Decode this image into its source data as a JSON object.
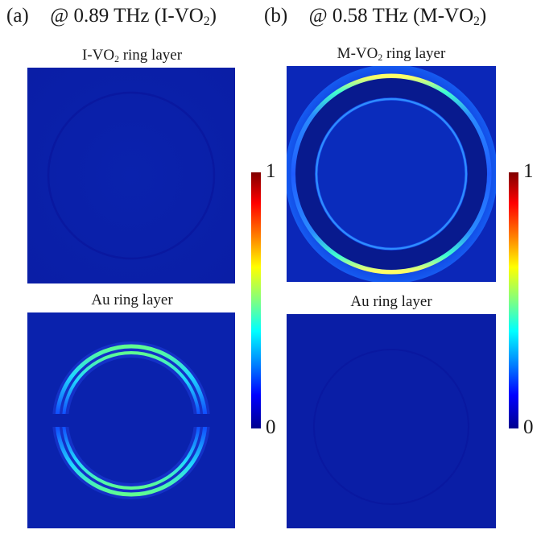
{
  "panels": [
    {
      "letter": "(a)",
      "condition_prefix": "@ 0.89 THz (I-VO",
      "condition_sub": "2",
      "condition_suffix": ")",
      "maps": [
        {
          "title_prefix": "I-VO",
          "title_sub": "2",
          "title_suffix": " ring layer"
        },
        {
          "title_prefix": "Au ring layer",
          "title_sub": "",
          "title_suffix": ""
        }
      ],
      "colorbar": {
        "max_label": "1",
        "min_label": "0"
      }
    },
    {
      "letter": "(b)",
      "condition_prefix": "@ 0.58 THz (M-VO",
      "condition_sub": "2",
      "condition_suffix": ")",
      "maps": [
        {
          "title_prefix": "M-VO",
          "title_sub": "2",
          "title_suffix": " ring layer"
        },
        {
          "title_prefix": "Au ring layer",
          "title_sub": "",
          "title_suffix": ""
        }
      ],
      "colorbar": {
        "max_label": "1",
        "min_label": "0"
      }
    }
  ],
  "colors": {
    "background_field": "#0a1ea6",
    "colormap": [
      "#00008f",
      "#0000ff",
      "#0080ff",
      "#00ffff",
      "#80ff80",
      "#ffff00",
      "#ff8000",
      "#ff0000",
      "#800000"
    ]
  }
}
